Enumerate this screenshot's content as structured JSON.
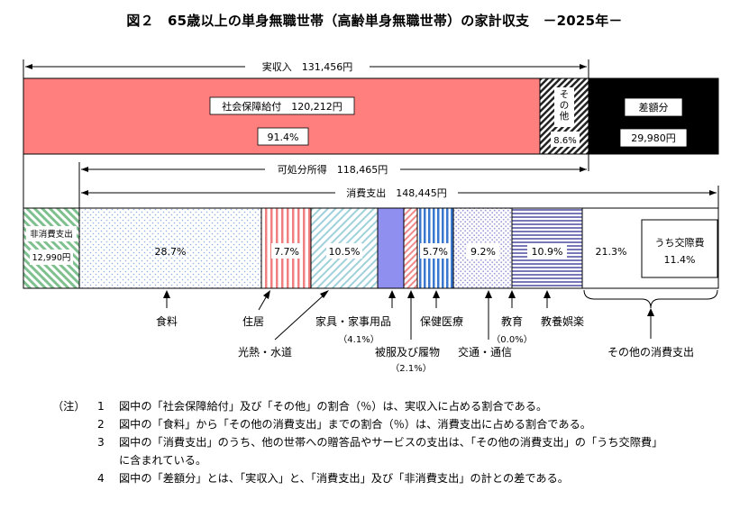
{
  "title": "図２　65歳以上の単身無職世帯（高齢単身無職世帯）の家計収支　－2025年－",
  "chart_data": {
    "type": "bar",
    "title": "図２　65歳以上の単身無職世帯（高齢単身無職世帯）の家計収支　－2025年－",
    "currency_unit": "円",
    "brackets": {
      "actual_income": "実収入　131,456円",
      "disposable_income": "可処分所得　118,465円",
      "consumption": "消費支出　148,445円"
    },
    "income_bar": [
      {
        "key": "social_security",
        "label": "社会保障給付　120,212円",
        "percent_label": "91.4%",
        "share": 91.4,
        "color": "#ff7f7f"
      },
      {
        "key": "other",
        "label": "その他",
        "percent_label": "8.6%",
        "share": 8.6,
        "color": "#555555"
      },
      {
        "key": "deficit",
        "label": "差額分",
        "value_label": "29,980円",
        "value": 29980,
        "color": "#000000"
      }
    ],
    "expense_bar": [
      {
        "key": "non_consumption",
        "label": "非消費支出",
        "value_label": "12,990円",
        "value": 12990,
        "color": "#9fd4a0"
      },
      {
        "key": "food",
        "percent_label": "28.7%",
        "share": 28.7,
        "label": "食料",
        "color": "#a6bfe6"
      },
      {
        "key": "housing",
        "percent_label": "7.7%",
        "share": 7.7,
        "label": "住居",
        "color": "#f08080"
      },
      {
        "key": "utilities",
        "percent_label": "10.5%",
        "share": 10.5,
        "label": "光熱・水道",
        "color": "#8fc9d9"
      },
      {
        "key": "furniture",
        "share": 4.1,
        "label": "家具・家事用品",
        "sub_label": "（4.1%）",
        "color": "#8f8fef"
      },
      {
        "key": "clothing",
        "share": 2.1,
        "label": "被服及び履物",
        "sub_label": "（2.1%）",
        "color": "#f2a0a0"
      },
      {
        "key": "medical",
        "percent_label": "5.7%",
        "share": 5.7,
        "label": "保健医療",
        "color": "#3f7fd0"
      },
      {
        "key": "transport",
        "percent_label": "9.2%",
        "share": 9.2,
        "label": "交通・通信",
        "color": "#b8b8e8"
      },
      {
        "key": "education",
        "share": 0.0,
        "label": "教育",
        "sub_label": "（0.0%）",
        "color": "#7f7fbf"
      },
      {
        "key": "recreation",
        "percent_label": "10.9%",
        "share": 10.9,
        "label": "教養娯楽",
        "color": "#8888bb"
      },
      {
        "key": "other_consumption",
        "percent_label": "21.3%",
        "share": 21.3,
        "label": "その他の消費支出",
        "color": "#ffffff"
      }
    ],
    "social_expense": {
      "label": "うち交際費",
      "percent_label": "11.4%",
      "share": 11.4
    }
  },
  "notes": {
    "lead": "（注）",
    "items": [
      {
        "num": "1",
        "lines": [
          "図中の「社会保障給付」及び「その他」の割合（％）は、実収入に占める割合である。"
        ]
      },
      {
        "num": "2",
        "lines": [
          "図中の「食料」から「その他の消費支出」までの割合（％）は、消費支出に占める割合である。"
        ]
      },
      {
        "num": "3",
        "lines": [
          "図中の「消費支出」のうち、他の世帯への贈答品やサービスの支出は、「その他の消費支出」の「うち交際費」",
          "に含まれている。"
        ]
      },
      {
        "num": "4",
        "lines": [
          "図中の「差額分」とは、「実収入」と、「消費支出」及び「非消費支出」の計との差である。"
        ]
      }
    ]
  }
}
